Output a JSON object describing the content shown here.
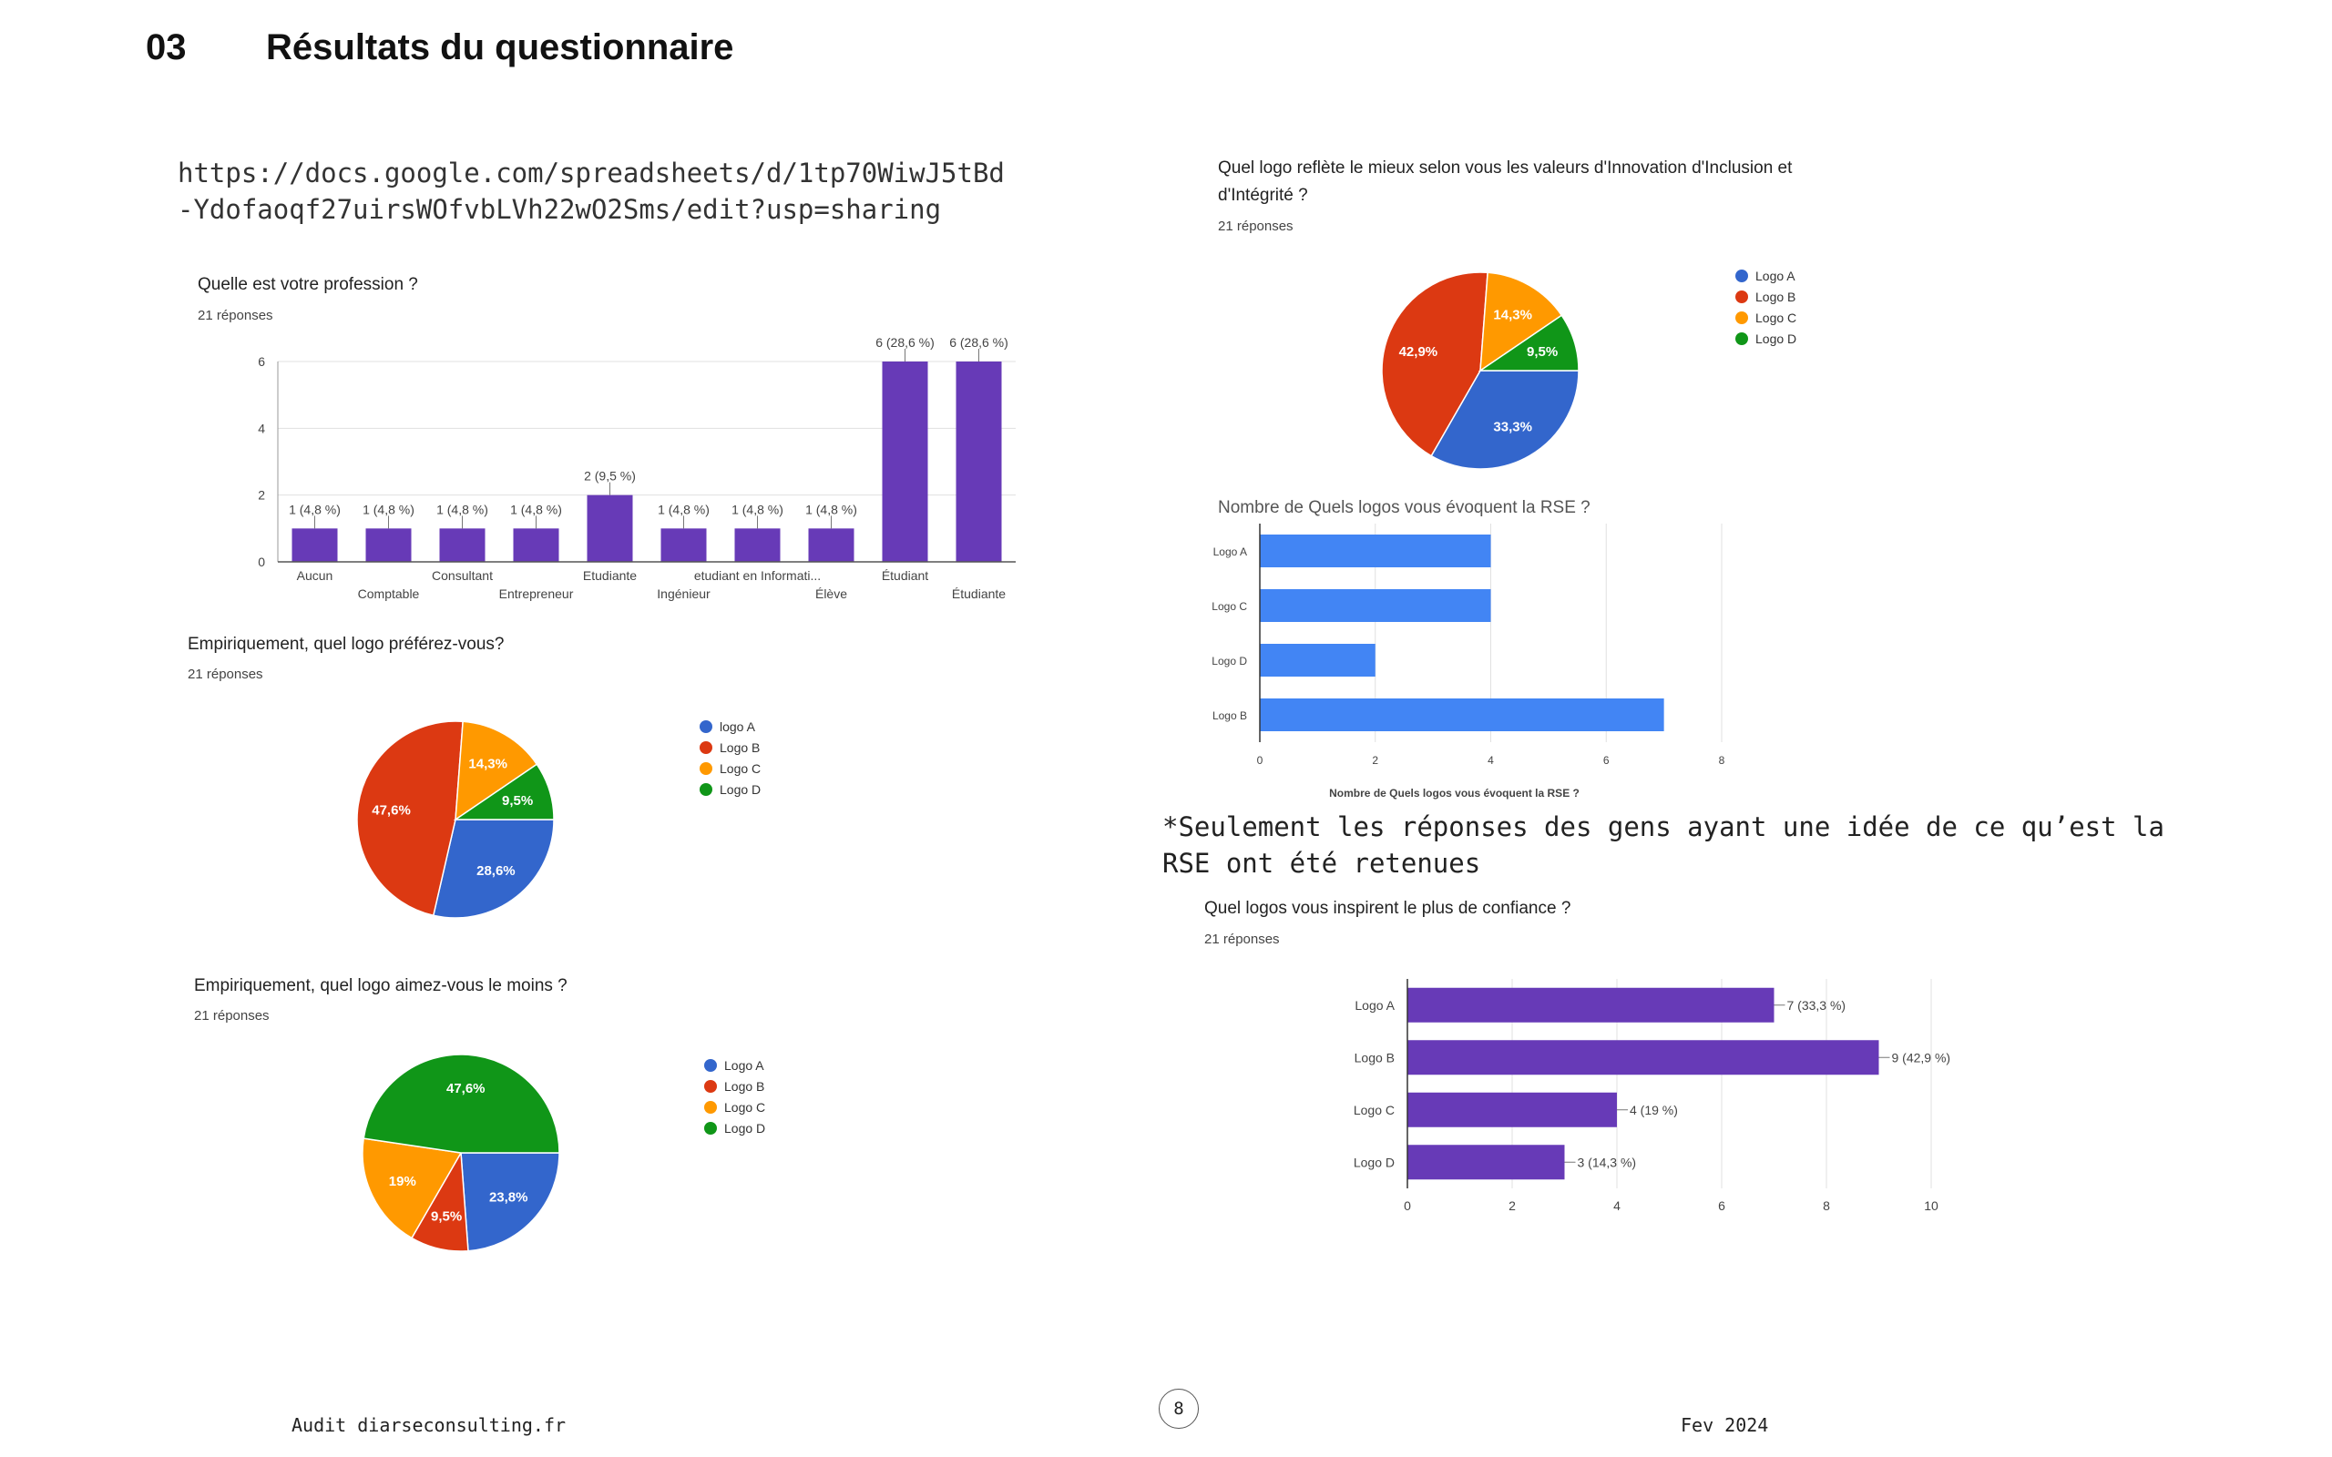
{
  "header": {
    "section_number": "03",
    "section_title": "Résultats du questionnaire"
  },
  "sheet_link": "https://docs.google.com/spreadsheets/d/1tp70WiwJ5tBd-Ydofaoqf27uirsWOfvbLVh22wO2Sms/edit?usp=sharing",
  "rse_note": "*Seulement les réponses des gens ayant une idée de ce qu’est la RSE ont été retenues",
  "footer": {
    "left": "Audit diarseconsulting.fr",
    "page_number": "8",
    "right": "Fev 2024"
  },
  "colors": {
    "blue": "#3366cc",
    "red": "#dc3912",
    "orange": "#ff9900",
    "green": "#109618",
    "purple": "#673ab7",
    "light_blue": "#4285f4"
  },
  "chart_data": [
    {
      "id": "profession",
      "type": "bar",
      "title": "Quelle est votre profession ?",
      "subtitle": "21 réponses",
      "categories": [
        "Aucun",
        "Comptable",
        "Consultant",
        "Entrepreneur",
        "Etudiante",
        "Ingénieur",
        "etudiant en Informati...",
        "Élève",
        "Étudiant",
        "Étudiante"
      ],
      "values": [
        1,
        1,
        1,
        1,
        2,
        1,
        1,
        1,
        6,
        6
      ],
      "data_labels": [
        "1 (4,8 %)",
        "1 (4,8 %)",
        "1 (4,8 %)",
        "1 (4,8 %)",
        "2 (9,5 %)",
        "1 (4,8 %)",
        "1 (4,8 %)",
        "1 (4,8 %)",
        "6 (28,6 %)",
        "6 (28,6 %)"
      ],
      "ylim": [
        0,
        6
      ],
      "yticks": [
        "0",
        "2",
        "4",
        "6"
      ],
      "grid": true
    },
    {
      "id": "prefer",
      "type": "pie",
      "title": "Empiriquement, quel logo préférez-vous?",
      "subtitle": "21 réponses",
      "labels": [
        "logo A",
        "Logo B",
        "Logo C",
        "Logo D"
      ],
      "values": [
        28.6,
        47.6,
        14.3,
        9.5
      ],
      "slice_labels": [
        "28,6%",
        "47,6%",
        "14,3%",
        "9,5%"
      ],
      "legend": "right"
    },
    {
      "id": "least",
      "type": "pie",
      "title": "Empiriquement, quel logo aimez-vous le moins ?",
      "subtitle": "21 réponses",
      "labels": [
        "Logo A",
        "Logo B",
        "Logo C",
        "Logo D"
      ],
      "values": [
        23.8,
        9.5,
        19,
        47.6
      ],
      "slice_labels": [
        "23,8%",
        "9,5%",
        "19%",
        "47,6%"
      ],
      "legend": "right"
    },
    {
      "id": "values",
      "type": "pie",
      "title": "Quel logo reflète le mieux selon vous les valeurs d'Innovation d'Inclusion et d'Intégrité ?",
      "subtitle": "21 réponses",
      "labels": [
        "Logo A",
        "Logo B",
        "Logo C",
        "Logo D"
      ],
      "values": [
        33.3,
        42.9,
        14.3,
        9.5
      ],
      "slice_labels": [
        "33,3%",
        "42,9%",
        "14,3%",
        "9,5%"
      ],
      "legend": "right"
    },
    {
      "id": "rse",
      "type": "bar",
      "orientation": "horizontal",
      "title": "Nombre de Quels logos vous évoquent la RSE ?",
      "xlabel": "Nombre de Quels logos vous évoquent la RSE ?",
      "categories": [
        "Logo A",
        "Logo C",
        "Logo D",
        "Logo B"
      ],
      "values": [
        4,
        4,
        2,
        7
      ],
      "xlim": [
        0,
        8
      ],
      "xticks": [
        "0",
        "2",
        "4",
        "6",
        "8"
      ],
      "grid": true
    },
    {
      "id": "trust",
      "type": "bar",
      "orientation": "horizontal",
      "title": "Quel logos vous inspirent le plus de confiance ?",
      "subtitle": "21 réponses",
      "categories": [
        "Logo A",
        "Logo B",
        "Logo C",
        "Logo D"
      ],
      "values": [
        7,
        9,
        4,
        3
      ],
      "data_labels": [
        "7 (33,3 %)",
        "9 (42,9 %)",
        "4 (19 %)",
        "3 (14,3 %)"
      ],
      "xlim": [
        0,
        10
      ],
      "xticks": [
        "0",
        "2",
        "4",
        "6",
        "8",
        "10"
      ],
      "grid": true
    }
  ]
}
